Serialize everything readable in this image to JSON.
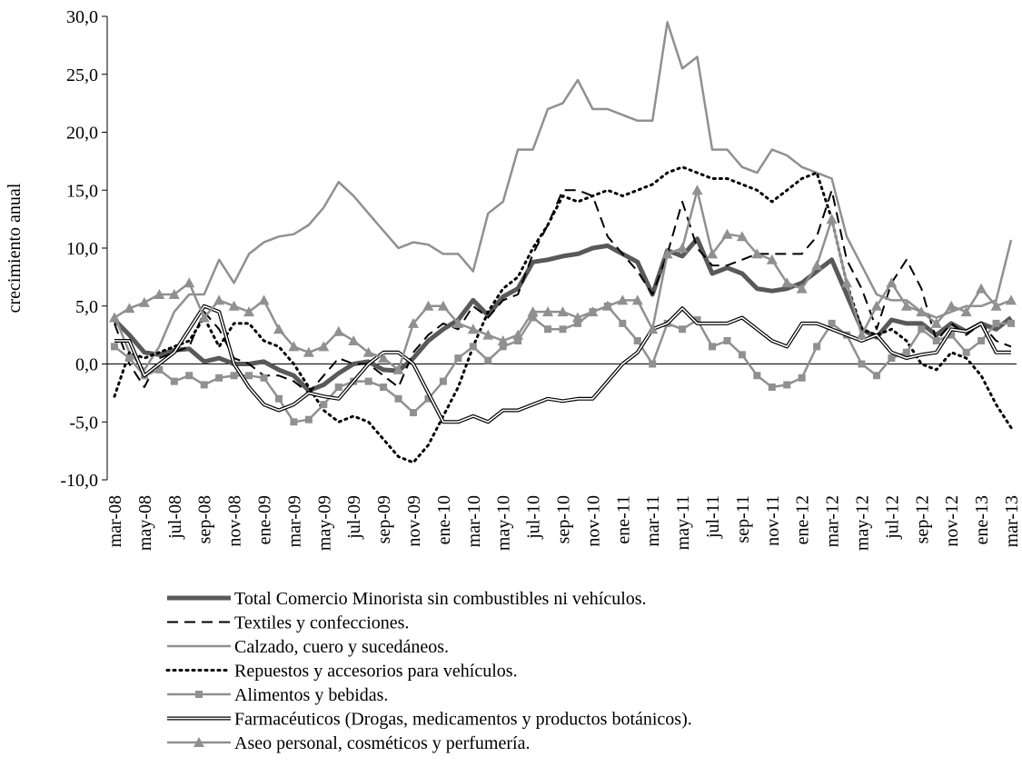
{
  "chart_data": {
    "type": "line",
    "y_label": "crecimiento anual",
    "categories": [
      "mar-08",
      null,
      "may-08",
      null,
      "jul-08",
      null,
      "sep-08",
      null,
      "nov-08",
      null,
      "ene-09",
      null,
      "mar-09",
      null,
      "may-09",
      null,
      "jul-09",
      null,
      "sep-09",
      null,
      "nov-09",
      null,
      "ene-10",
      null,
      "mar-10",
      null,
      "may-10",
      null,
      "jul-10",
      null,
      "sep-10",
      null,
      "nov-10",
      null,
      "ene-11",
      null,
      "mar-11",
      null,
      "may-11",
      null,
      "jul-11",
      null,
      "sep-11",
      null,
      "nov-11",
      null,
      "ene-12",
      null,
      "mar-12",
      null,
      "may-12",
      null,
      "jul-12",
      null,
      "sep-12",
      null,
      "nov-12",
      null,
      "ene-13",
      null,
      "mar-13"
    ],
    "ylim": [
      -10,
      30
    ],
    "yticks": [
      {
        "value": -10,
        "label": "-10,0"
      },
      {
        "value": -5,
        "label": "-5,0"
      },
      {
        "value": 0,
        "label": "0,0"
      },
      {
        "value": 5,
        "label": "5,0"
      },
      {
        "value": 10,
        "label": "10,0"
      },
      {
        "value": 15,
        "label": "15,0"
      },
      {
        "value": 20,
        "label": "20,0"
      },
      {
        "value": 25,
        "label": "25,0"
      },
      {
        "value": 30,
        "label": "30,0"
      }
    ],
    "series": [
      {
        "name": "Total Comercio Minorista sin combustibles ni vehículos.",
        "color": "#595959",
        "line_style": "solid",
        "width": 5,
        "values": [
          3.8,
          2.5,
          1.0,
          0.8,
          1.2,
          1.3,
          0.2,
          0.5,
          0.0,
          0.0,
          0.2,
          -0.5,
          -1.0,
          -2.3,
          -1.8,
          -0.8,
          0.0,
          0.2,
          -0.5,
          -0.6,
          0.5,
          2.0,
          3.0,
          3.8,
          5.5,
          4.2,
          5.8,
          6.5,
          8.8,
          9.0,
          9.3,
          9.5,
          10.0,
          10.2,
          9.5,
          8.8,
          6.0,
          9.8,
          9.3,
          10.8,
          7.8,
          8.3,
          7.8,
          6.5,
          6.3,
          6.5,
          7.0,
          8.0,
          9.0,
          6.0,
          3.0,
          2.3,
          3.8,
          3.5,
          3.5,
          2.5,
          3.5,
          2.8,
          3.5,
          3.0,
          4.0
        ]
      },
      {
        "name": "Textiles y confecciones.",
        "color": "#000000",
        "line_style": "dashed",
        "width": 2,
        "values": [
          3.5,
          0,
          -2.0,
          0.5,
          1.0,
          1.5,
          4.5,
          3.0,
          0.5,
          0.0,
          -1.0,
          -1.0,
          -1.5,
          -2.5,
          -1.0,
          0.5,
          0.0,
          0.0,
          -1.0,
          -2.0,
          1.0,
          2.5,
          3.5,
          3.0,
          5.0,
          4.0,
          5.5,
          6.0,
          9.5,
          12.0,
          15.0,
          15.0,
          14.5,
          11.0,
          9.5,
          8.0,
          6.0,
          9.5,
          14.0,
          10.0,
          8.5,
          8.5,
          9.0,
          9.5,
          9.5,
          9.5,
          9.5,
          11.0,
          15.0,
          9.0,
          6.5,
          3.0,
          7.0,
          9.0,
          6.5,
          2.0,
          3.5,
          2.5,
          3.5,
          2.0,
          1.5
        ]
      },
      {
        "name": "Calzado, cuero y sucedáneos.",
        "color": "#909090",
        "line_style": "solid",
        "width": 2.5,
        "values": [
          4.2,
          1.0,
          -0.5,
          1.5,
          4.5,
          6.0,
          6.0,
          9.0,
          7.0,
          9.5,
          10.5,
          11.0,
          11.2,
          12.0,
          13.5,
          15.7,
          14.5,
          13.0,
          11.5,
          10.0,
          10.5,
          10.3,
          9.5,
          9.5,
          8.0,
          13.0,
          14.0,
          18.5,
          18.5,
          22.0,
          22.5,
          24.5,
          22.0,
          22.0,
          21.5,
          21.0,
          21.0,
          29.5,
          25.5,
          26.5,
          18.5,
          18.5,
          17.0,
          16.5,
          18.5,
          18.0,
          17.0,
          16.5,
          16.0,
          11.0,
          8.5,
          6.0,
          5.5,
          5.5,
          4.5,
          4.0,
          4.5,
          5.0,
          5.0,
          5.5,
          10.7
        ]
      },
      {
        "name": "Repuestos y accesorios para vehículos.",
        "color": "#000000",
        "line_style": "dotted",
        "width": 3,
        "values": [
          -2.8,
          1.0,
          0.5,
          1.0,
          1.5,
          2.0,
          4.0,
          1.5,
          3.5,
          3.5,
          2.0,
          1.5,
          0.0,
          -2.0,
          -4.0,
          -5.0,
          -4.5,
          -5.0,
          -6.5,
          -8.0,
          -8.5,
          -7.0,
          -4.5,
          -2.0,
          1.5,
          4.5,
          6.5,
          7.5,
          10.0,
          12.0,
          14.5,
          14.0,
          14.5,
          15.0,
          14.5,
          15.0,
          15.5,
          16.5,
          17.0,
          16.5,
          16.0,
          16.0,
          15.5,
          15.0,
          14.0,
          15.0,
          16.0,
          16.5,
          12.5,
          7.0,
          3.0,
          2.5,
          3.0,
          2.0,
          0.0,
          -0.5,
          1.0,
          0.5,
          -1.0,
          -3.5,
          -5.5
        ]
      },
      {
        "name": "Alimentos y bebidas.",
        "color": "#909090",
        "line_style": "solid",
        "width": 2.5,
        "marker": "square",
        "values": [
          1.5,
          0.5,
          -1.0,
          -0.5,
          -1.5,
          -1.0,
          -1.8,
          -1.2,
          -1.0,
          -1.0,
          -1.2,
          -3.0,
          -5.0,
          -4.8,
          -3.5,
          -2.0,
          -1.5,
          -1.5,
          -2.0,
          -3.0,
          -4.2,
          -3.0,
          -1.5,
          0.5,
          1.5,
          0.3,
          1.5,
          2.0,
          4.0,
          3.0,
          3.0,
          3.5,
          4.5,
          5.0,
          3.5,
          2.0,
          0.0,
          3.5,
          3.0,
          3.8,
          1.5,
          2.0,
          0.8,
          -1.0,
          -2.0,
          -1.8,
          -1.2,
          1.5,
          3.5,
          2.5,
          0.0,
          -1.0,
          0.5,
          1.0,
          3.0,
          2.0,
          2.5,
          1.0,
          2.0,
          3.5,
          3.5
        ]
      },
      {
        "name": "Farmacéuticos (Drogas, medicamentos y productos botánicos).",
        "color": "#000000",
        "line_style": "double",
        "width": 4,
        "values": [
          2.0,
          2.0,
          -1.0,
          0.0,
          1.0,
          3.0,
          5.0,
          4.5,
          0.0,
          -2.0,
          -3.5,
          -4.0,
          -3.5,
          -2.5,
          -2.8,
          -3.0,
          -1.5,
          0.0,
          1.0,
          1.0,
          0.0,
          -2.5,
          -5.0,
          -5.0,
          -4.5,
          -5.0,
          -4.0,
          -4.0,
          -3.5,
          -3.0,
          -3.2,
          -3.0,
          -3.0,
          -1.5,
          0.0,
          1.0,
          3.0,
          3.5,
          4.8,
          3.5,
          3.5,
          3.5,
          4.0,
          3.0,
          2.0,
          1.5,
          3.5,
          3.5,
          3.0,
          2.5,
          2.0,
          2.5,
          1.0,
          0.5,
          0.8,
          1.0,
          3.0,
          2.8,
          3.5,
          1.0,
          1.0
        ]
      },
      {
        "name": "Aseo personal, cosméticos y perfumería.",
        "color": "#909090",
        "line_style": "solid",
        "width": 2.5,
        "marker": "triangle",
        "values": [
          4.0,
          4.8,
          5.3,
          6.0,
          6.0,
          7.0,
          4.0,
          5.5,
          5.0,
          4.5,
          5.5,
          3.0,
          1.5,
          1.0,
          1.5,
          2.8,
          2.0,
          1.0,
          0.5,
          -0.5,
          3.5,
          5.0,
          5.0,
          3.5,
          3.0,
          2.5,
          2.0,
          2.5,
          4.5,
          4.5,
          4.5,
          4.0,
          4.5,
          5.0,
          5.5,
          5.5,
          3.0,
          9.5,
          10.0,
          15.0,
          9.5,
          11.2,
          11.0,
          9.5,
          9.0,
          7.0,
          6.5,
          8.5,
          12.5,
          7.0,
          2.5,
          5.0,
          7.0,
          5.0,
          4.5,
          3.5,
          5.0,
          4.5,
          6.5,
          5.0,
          5.5
        ]
      }
    ]
  }
}
